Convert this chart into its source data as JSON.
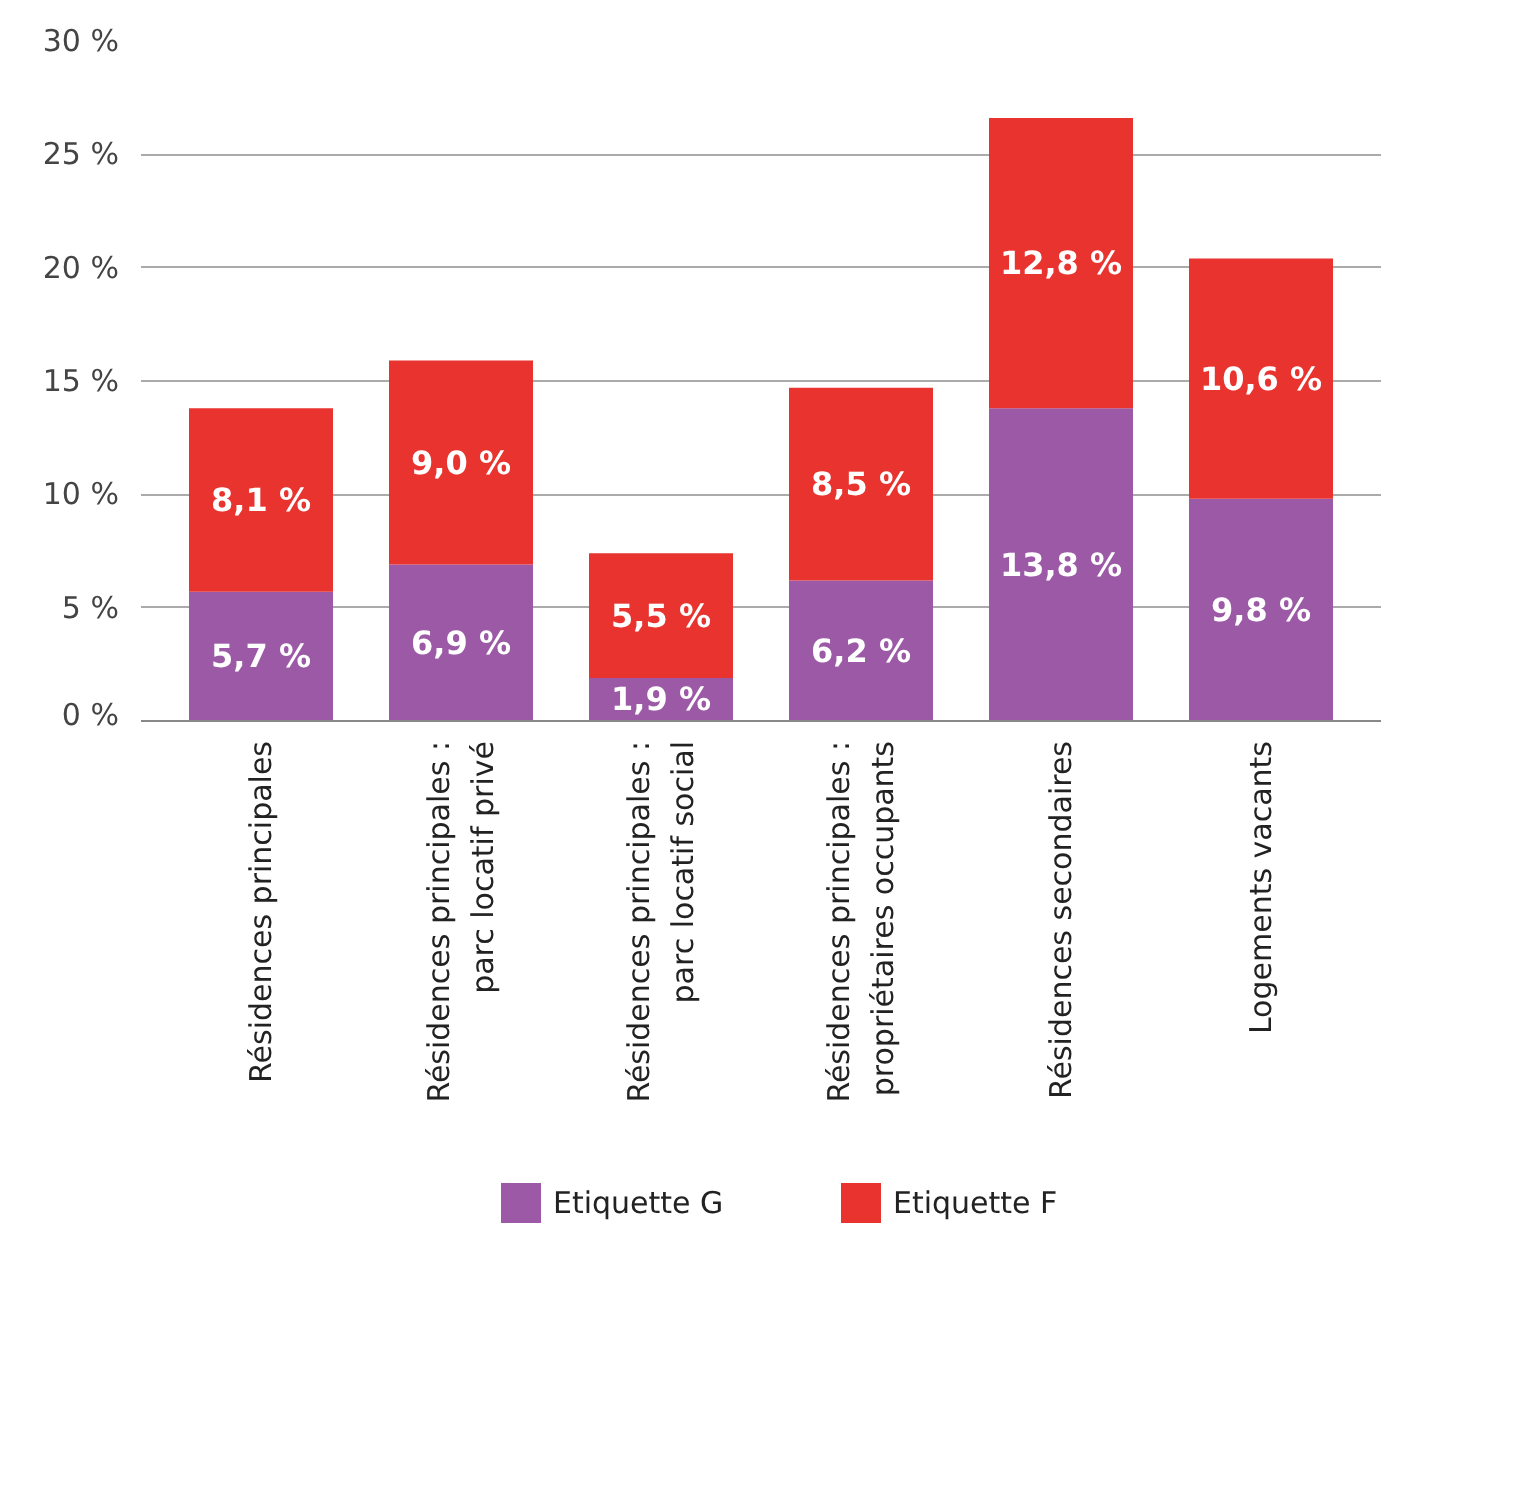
{
  "chart_data": {
    "type": "bar",
    "stacked": true,
    "categories": [
      "Résidences principales",
      "Résidences principales : parc locatif privé",
      "Résidences principales : parc locatif social",
      "Résidences principales : propriétaires occupants",
      "Résidences secondaires",
      "Logements vacants"
    ],
    "series": [
      {
        "name": "Etiquette G",
        "color": "#9b59a6",
        "values": [
          5.7,
          6.9,
          1.9,
          6.2,
          13.8,
          9.8
        ],
        "value_labels": [
          "5,7 %",
          "6,9 %",
          "1,9 %",
          "6,2 %",
          "13,8 %",
          "9,8 %"
        ]
      },
      {
        "name": "Etiquette F",
        "color": "#e8332e",
        "values": [
          8.1,
          9.0,
          5.5,
          8.5,
          12.8,
          10.6
        ],
        "value_labels": [
          "8,1 %",
          "9,0 %",
          "5,5 %",
          "8,5 %",
          "12,8 %",
          "10,6 %"
        ]
      }
    ],
    "ylim": [
      0,
      30
    ],
    "yticks": [
      {
        "value": 0,
        "label": "0 %"
      },
      {
        "value": 5,
        "label": "5 %"
      },
      {
        "value": 10,
        "label": "10 %"
      },
      {
        "value": 15,
        "label": "15 %"
      },
      {
        "value": 20,
        "label": "20 %"
      },
      {
        "value": 25,
        "label": "25 %"
      },
      {
        "value": 30,
        "label": "30 %"
      }
    ],
    "grid": "y",
    "legend": "bottom"
  }
}
